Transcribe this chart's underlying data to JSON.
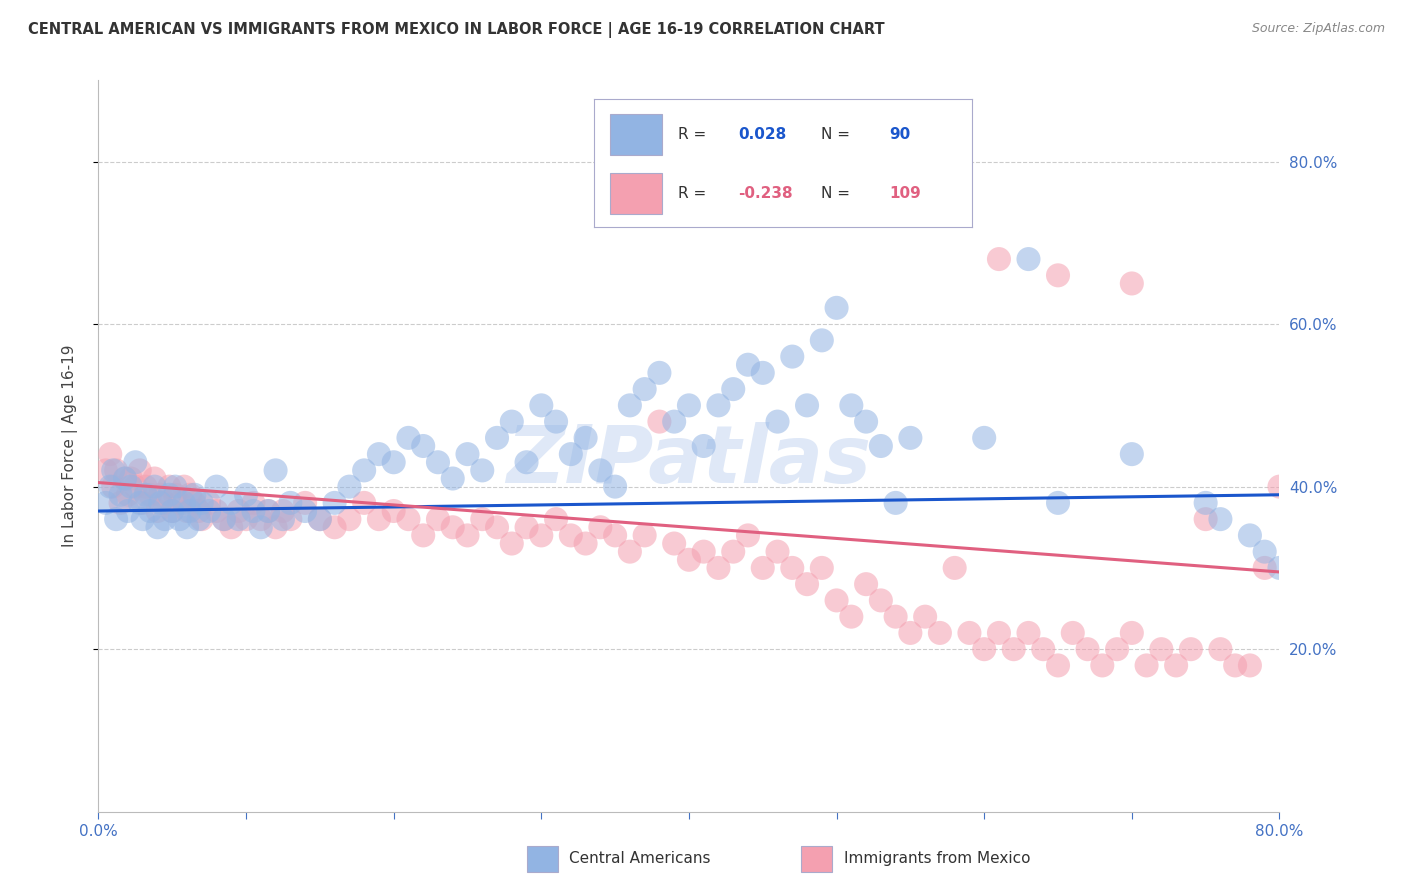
{
  "title": "CENTRAL AMERICAN VS IMMIGRANTS FROM MEXICO IN LABOR FORCE | AGE 16-19 CORRELATION CHART",
  "source": "Source: ZipAtlas.com",
  "ylabel": "In Labor Force | Age 16-19",
  "xlim": [
    0.0,
    0.8
  ],
  "ylim": [
    0.0,
    0.9
  ],
  "yticks": [
    0.2,
    0.4,
    0.6,
    0.8
  ],
  "xticks": [
    0.0,
    0.1,
    0.2,
    0.3,
    0.4,
    0.5,
    0.6,
    0.7,
    0.8
  ],
  "xtick_labels": [
    "0.0%",
    "",
    "",
    "",
    "",
    "",
    "",
    "",
    "80.0%"
  ],
  "ytick_labels": [
    "20.0%",
    "40.0%",
    "60.0%",
    "80.0%"
  ],
  "blue_R": 0.028,
  "blue_N": 90,
  "pink_R": -0.238,
  "pink_N": 109,
  "blue_color": "#92b4e3",
  "pink_color": "#f4a0b0",
  "blue_line_color": "#1a56cc",
  "pink_line_color": "#e06080",
  "legend_label_blue": "Central Americans",
  "legend_label_pink": "Immigrants from Mexico",
  "watermark": "ZIPatlas",
  "axis_tick_color": "#4472c4",
  "blue_line_start": 0.37,
  "blue_line_end": 0.39,
  "pink_line_start": 0.405,
  "pink_line_end": 0.295,
  "blue_x": [
    0.005,
    0.008,
    0.01,
    0.012,
    0.015,
    0.018,
    0.02,
    0.022,
    0.025,
    0.028,
    0.03,
    0.032,
    0.035,
    0.038,
    0.04,
    0.042,
    0.045,
    0.048,
    0.05,
    0.052,
    0.055,
    0.058,
    0.06,
    0.062,
    0.065,
    0.068,
    0.07,
    0.075,
    0.08,
    0.085,
    0.09,
    0.095,
    0.1,
    0.105,
    0.11,
    0.115,
    0.12,
    0.125,
    0.13,
    0.14,
    0.15,
    0.16,
    0.17,
    0.18,
    0.19,
    0.2,
    0.21,
    0.22,
    0.23,
    0.24,
    0.25,
    0.26,
    0.27,
    0.28,
    0.29,
    0.3,
    0.31,
    0.32,
    0.33,
    0.34,
    0.35,
    0.36,
    0.37,
    0.38,
    0.39,
    0.4,
    0.41,
    0.42,
    0.43,
    0.44,
    0.45,
    0.46,
    0.47,
    0.48,
    0.49,
    0.5,
    0.51,
    0.52,
    0.53,
    0.54,
    0.55,
    0.6,
    0.63,
    0.65,
    0.7,
    0.75,
    0.76,
    0.78,
    0.79,
    0.8
  ],
  "blue_y": [
    0.38,
    0.4,
    0.42,
    0.36,
    0.39,
    0.41,
    0.37,
    0.4,
    0.43,
    0.38,
    0.36,
    0.39,
    0.37,
    0.4,
    0.35,
    0.38,
    0.36,
    0.39,
    0.37,
    0.4,
    0.36,
    0.38,
    0.35,
    0.37,
    0.39,
    0.36,
    0.38,
    0.37,
    0.4,
    0.36,
    0.38,
    0.36,
    0.39,
    0.37,
    0.35,
    0.37,
    0.42,
    0.36,
    0.38,
    0.37,
    0.36,
    0.38,
    0.4,
    0.42,
    0.44,
    0.43,
    0.46,
    0.45,
    0.43,
    0.41,
    0.44,
    0.42,
    0.46,
    0.48,
    0.43,
    0.5,
    0.48,
    0.44,
    0.46,
    0.42,
    0.4,
    0.5,
    0.52,
    0.54,
    0.48,
    0.5,
    0.45,
    0.5,
    0.52,
    0.55,
    0.54,
    0.48,
    0.56,
    0.5,
    0.58,
    0.62,
    0.5,
    0.48,
    0.45,
    0.38,
    0.46,
    0.46,
    0.68,
    0.38,
    0.44,
    0.38,
    0.36,
    0.34,
    0.32,
    0.3
  ],
  "pink_x": [
    0.005,
    0.008,
    0.01,
    0.012,
    0.015,
    0.018,
    0.02,
    0.022,
    0.025,
    0.028,
    0.03,
    0.032,
    0.035,
    0.038,
    0.04,
    0.042,
    0.045,
    0.048,
    0.05,
    0.052,
    0.055,
    0.058,
    0.06,
    0.062,
    0.065,
    0.068,
    0.07,
    0.075,
    0.08,
    0.085,
    0.09,
    0.095,
    0.1,
    0.105,
    0.11,
    0.115,
    0.12,
    0.125,
    0.13,
    0.14,
    0.15,
    0.16,
    0.17,
    0.18,
    0.19,
    0.2,
    0.21,
    0.22,
    0.23,
    0.24,
    0.25,
    0.26,
    0.27,
    0.28,
    0.29,
    0.3,
    0.31,
    0.32,
    0.33,
    0.34,
    0.35,
    0.36,
    0.37,
    0.38,
    0.39,
    0.4,
    0.41,
    0.42,
    0.43,
    0.44,
    0.45,
    0.46,
    0.47,
    0.48,
    0.49,
    0.5,
    0.51,
    0.52,
    0.53,
    0.54,
    0.55,
    0.56,
    0.57,
    0.58,
    0.59,
    0.6,
    0.61,
    0.62,
    0.63,
    0.64,
    0.65,
    0.66,
    0.67,
    0.68,
    0.69,
    0.7,
    0.71,
    0.72,
    0.73,
    0.74,
    0.75,
    0.76,
    0.77,
    0.78,
    0.79,
    0.8,
    0.61,
    0.65,
    0.7
  ],
  "pink_y": [
    0.42,
    0.44,
    0.4,
    0.42,
    0.38,
    0.41,
    0.39,
    0.41,
    0.4,
    0.42,
    0.38,
    0.4,
    0.39,
    0.41,
    0.37,
    0.39,
    0.38,
    0.4,
    0.37,
    0.39,
    0.38,
    0.4,
    0.37,
    0.39,
    0.38,
    0.37,
    0.36,
    0.38,
    0.37,
    0.36,
    0.35,
    0.37,
    0.36,
    0.38,
    0.36,
    0.37,
    0.35,
    0.37,
    0.36,
    0.38,
    0.36,
    0.35,
    0.36,
    0.38,
    0.36,
    0.37,
    0.36,
    0.34,
    0.36,
    0.35,
    0.34,
    0.36,
    0.35,
    0.33,
    0.35,
    0.34,
    0.36,
    0.34,
    0.33,
    0.35,
    0.34,
    0.32,
    0.34,
    0.48,
    0.33,
    0.31,
    0.32,
    0.3,
    0.32,
    0.34,
    0.3,
    0.32,
    0.3,
    0.28,
    0.3,
    0.26,
    0.24,
    0.28,
    0.26,
    0.24,
    0.22,
    0.24,
    0.22,
    0.3,
    0.22,
    0.2,
    0.22,
    0.2,
    0.22,
    0.2,
    0.18,
    0.22,
    0.2,
    0.18,
    0.2,
    0.22,
    0.18,
    0.2,
    0.18,
    0.2,
    0.36,
    0.2,
    0.18,
    0.18,
    0.3,
    0.4,
    0.68,
    0.66,
    0.65
  ]
}
